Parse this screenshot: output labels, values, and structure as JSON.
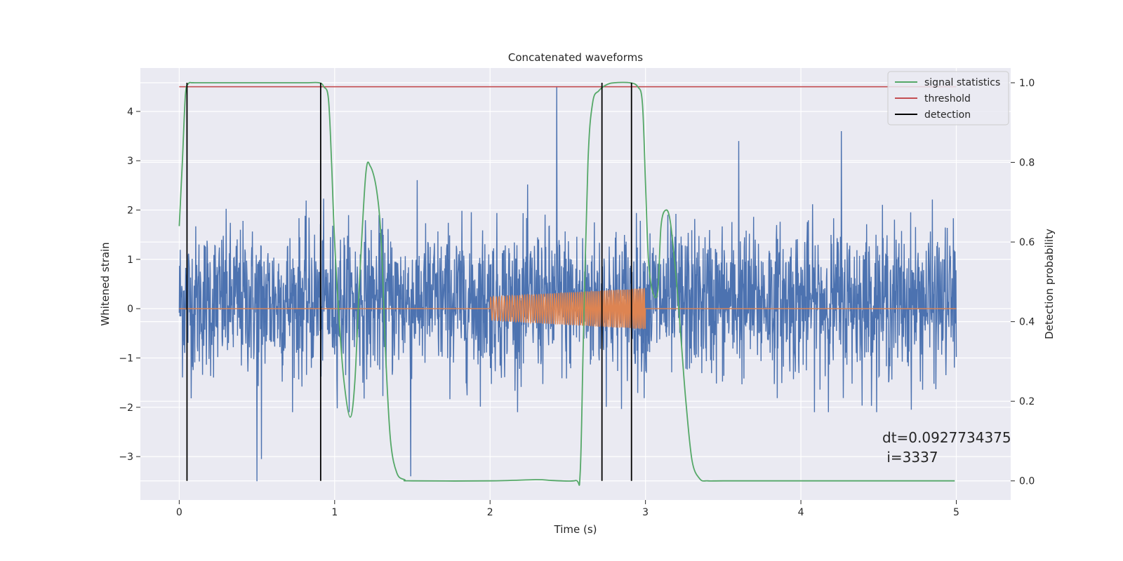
{
  "chart_data": {
    "type": "line",
    "title": "Concatenated waveforms",
    "xlabel": "Time (s)",
    "ylabel": "Whitened strain",
    "y2label": "Detection probability",
    "xlim": [
      -0.25,
      5.35
    ],
    "ylim": [
      -3.88,
      4.88
    ],
    "y2lim": [
      -0.048,
      1.037
    ],
    "xticks": [
      0,
      1,
      2,
      3,
      4,
      5
    ],
    "yticks": [
      -3,
      -2,
      -1,
      0,
      1,
      2,
      3,
      4
    ],
    "y2ticks": [
      0.0,
      0.2,
      0.4,
      0.6,
      0.8,
      1.0
    ],
    "xtick_labels": [
      "0",
      "1",
      "2",
      "3",
      "4",
      "5"
    ],
    "ytick_labels": [
      "−3",
      "−2",
      "−1",
      "0",
      "1",
      "2",
      "3",
      "4"
    ],
    "y2tick_labels": [
      "0.0",
      "0.2",
      "0.4",
      "0.6",
      "0.8",
      "1.0"
    ],
    "grid": true,
    "legend_position": "top-right",
    "legend": [
      "signal statistics",
      "threshold",
      "detection"
    ],
    "series": [
      {
        "name": "strain",
        "axis": "left",
        "color": "#4c72b0",
        "x_range": [
          0,
          5
        ],
        "typical_range": [
          -1.8,
          2.4
        ],
        "peaks": [
          {
            "x": 2.43,
            "y": 4.5
          },
          {
            "x": 0.5,
            "y": -3.5
          },
          {
            "x": 1.49,
            "y": -3.4
          },
          {
            "x": 0.53,
            "y": -3.05
          },
          {
            "x": 3.6,
            "y": 3.4
          },
          {
            "x": 4.26,
            "y": 3.6
          }
        ]
      },
      {
        "name": "waveform",
        "axis": "left",
        "color": "#dd8452",
        "x": [
          2.0,
          3.0
        ],
        "amplitude": [
          0.24,
          0.42
        ]
      },
      {
        "name": "signal statistics",
        "axis": "right",
        "color": "#55a868",
        "x": [
          0.0,
          0.02,
          0.04,
          0.06,
          0.08,
          0.1,
          0.2,
          0.5,
          0.8,
          0.9,
          0.93,
          0.96,
          0.98,
          1.0,
          1.03,
          1.06,
          1.1,
          1.13,
          1.16,
          1.2,
          1.23,
          1.27,
          1.3,
          1.33,
          1.36,
          1.4,
          1.45,
          1.5,
          2.0,
          2.3,
          2.4,
          2.55,
          2.58,
          2.6,
          2.63,
          2.66,
          2.7,
          2.75,
          2.8,
          2.9,
          2.95,
          2.98,
          3.0,
          3.02,
          3.05,
          3.08,
          3.1,
          3.13,
          3.16,
          3.2,
          3.23,
          3.26,
          3.3,
          3.35,
          3.4,
          3.5,
          4.0,
          4.5,
          4.99
        ],
        "y": [
          0.64,
          0.8,
          0.97,
          0.998,
          1.0,
          1.0,
          1.0,
          1.0,
          1.0,
          1.0,
          0.99,
          0.96,
          0.8,
          0.6,
          0.4,
          0.25,
          0.16,
          0.25,
          0.5,
          0.77,
          0.79,
          0.73,
          0.6,
          0.3,
          0.1,
          0.02,
          0.003,
          0.0,
          0.0,
          0.003,
          0.001,
          0.001,
          0.02,
          0.35,
          0.8,
          0.95,
          0.98,
          0.995,
          1.0,
          1.0,
          0.99,
          0.95,
          0.75,
          0.55,
          0.47,
          0.48,
          0.64,
          0.68,
          0.65,
          0.5,
          0.35,
          0.2,
          0.05,
          0.005,
          0.0,
          0.0,
          0.0,
          0.0,
          0.0
        ]
      },
      {
        "name": "threshold",
        "axis": "right",
        "color": "#c44e52",
        "x": [
          0,
          5
        ],
        "y": [
          0.99,
          0.99
        ]
      },
      {
        "name": "detection",
        "axis": "right",
        "color": "#000000",
        "x": [
          0.05,
          0.91,
          2.72,
          2.91
        ],
        "y_range": [
          0.0,
          1.0
        ]
      }
    ],
    "annotation": {
      "line1": "dt=0.0927734375",
      "line2": " i=3337"
    },
    "colors": {
      "background": "#eaeaf2",
      "grid": "#ffffff",
      "strain": "#4c72b0",
      "waveform": "#dd8452",
      "signal": "#55a868",
      "threshold": "#c44e52",
      "detection": "#000000"
    }
  }
}
